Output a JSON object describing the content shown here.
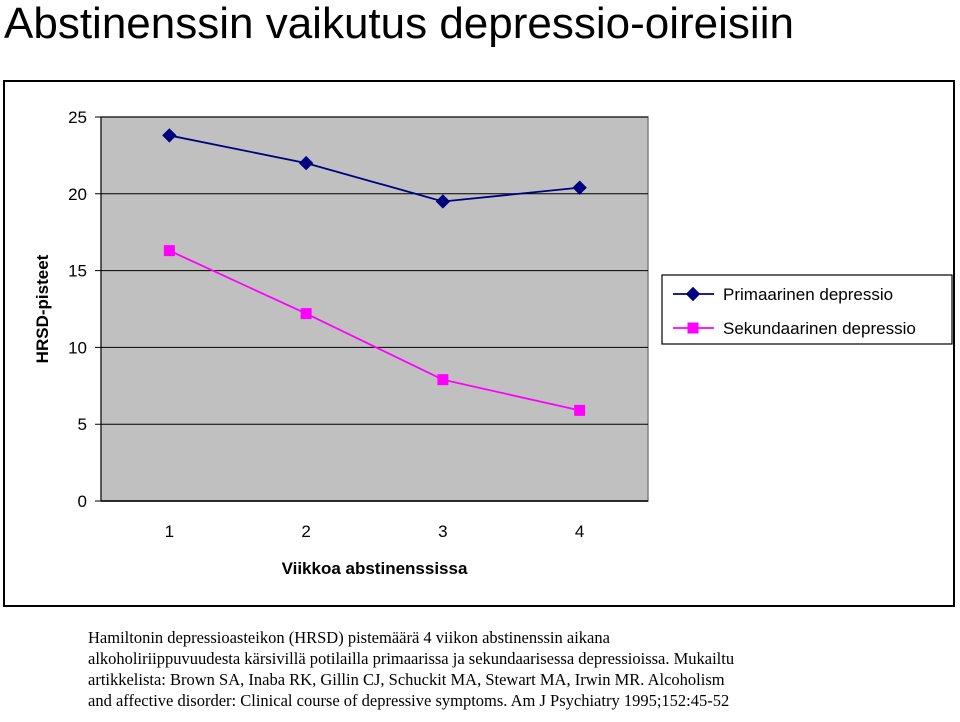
{
  "slide": {
    "title": "Abstinenssin vaikutus depressio-oireisiin"
  },
  "chart_data": {
    "type": "line",
    "title": "",
    "xlabel": "Viikkoa abstinenssissa",
    "ylabel": "HRSD-pisteet",
    "categories": [
      "1",
      "2",
      "3",
      "4"
    ],
    "ylim": [
      0,
      25
    ],
    "yticks": [
      0,
      5,
      10,
      15,
      20,
      25
    ],
    "grid": true,
    "legend": "right",
    "plot_background": "#C0C0C0",
    "series": [
      {
        "name": "Primaarinen depressio",
        "values": [
          23.8,
          22.0,
          19.5,
          20.4
        ],
        "color": "#000080",
        "marker": "diamond"
      },
      {
        "name": "Sekundaarinen depressio",
        "values": [
          16.3,
          12.2,
          7.9,
          5.9
        ],
        "color": "#FF00FF",
        "marker": "square"
      }
    ]
  },
  "caption": {
    "lines": [
      "Hamiltonin depressioasteikon (HRSD) pistemäärä 4 viikon abstinenssin aikana",
      "alkoholiriippuvuudesta kärsivillä potilailla primaarissa ja sekundaarisessa depressioissa. Mukailtu",
      "artikkelista: Brown SA, Inaba RK, Gillin CJ, Schuckit MA, Stewart MA, Irwin MR.  Alcoholism",
      "and affective disorder: Clinical course of depressive symptoms. Am J Psychiatry 1995;152:45-52"
    ]
  }
}
